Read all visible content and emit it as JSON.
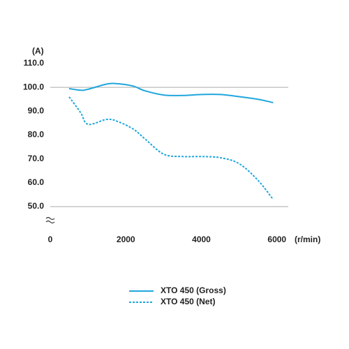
{
  "chart_data": {
    "type": "line",
    "y_unit": "(A)",
    "x_unit": "(r/min)",
    "x": [
      500,
      800,
      1000,
      1500,
      1800,
      2200,
      2500,
      3000,
      3500,
      4000,
      4500,
      5000,
      5500,
      5900
    ],
    "series": [
      {
        "name": "XTO 450 (Gross)",
        "color": "#1fa6dc",
        "dashed": false,
        "values": [
          99.5,
          98.8,
          99.2,
          101.4,
          101.5,
          100.5,
          98.6,
          96.8,
          96.6,
          97.0,
          97.0,
          96.1,
          95.0,
          93.6
        ]
      },
      {
        "name": "XTO 450 (Net)",
        "color": "#1fa6dc",
        "dashed": true,
        "values": [
          96.0,
          89.5,
          84.5,
          86.6,
          85.6,
          82.5,
          78.5,
          72.0,
          71.0,
          71.0,
          70.5,
          68.0,
          61.0,
          53.0
        ]
      }
    ],
    "xlim": [
      0,
      6300
    ],
    "xticks": [
      0,
      2000,
      4000,
      6000
    ],
    "ylim": [
      50,
      110
    ],
    "yticks": [
      {
        "value": 50,
        "label": "50.0"
      },
      {
        "value": 60,
        "label": "60.0"
      },
      {
        "value": 70,
        "label": "70.0"
      },
      {
        "value": 80,
        "label": "80.0"
      },
      {
        "value": 90,
        "label": "90.0"
      },
      {
        "value": 100,
        "label": "100.0"
      },
      {
        "value": 110,
        "label": "110.0"
      }
    ],
    "gridlines": [
      50,
      100
    ]
  }
}
